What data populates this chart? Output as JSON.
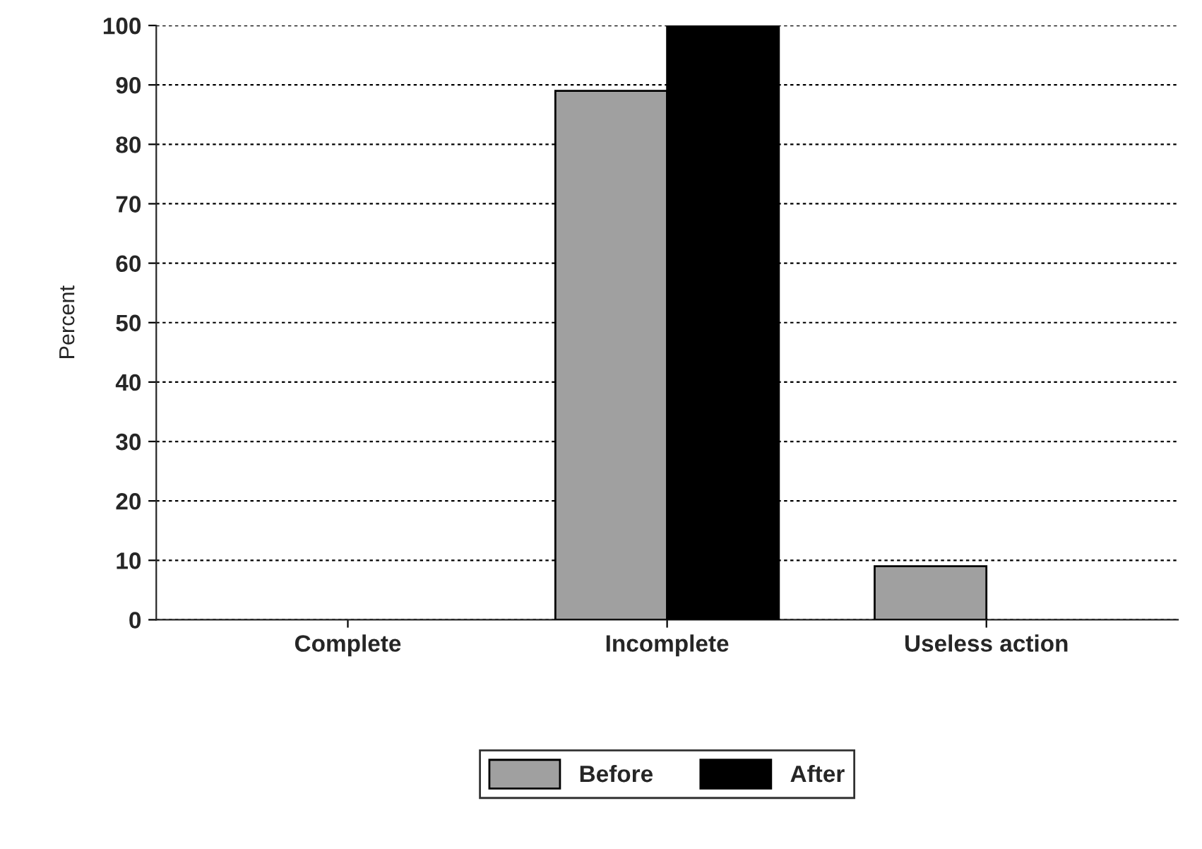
{
  "chart_data": {
    "type": "bar",
    "ylabel": "Percent",
    "categories": [
      "Complete",
      "Incomplete",
      "Useless action"
    ],
    "series": [
      {
        "name": "Before",
        "color": "#a0a0a0",
        "values": [
          0,
          89,
          9
        ]
      },
      {
        "name": "After",
        "color": "#000000",
        "values": [
          0,
          100,
          0
        ]
      }
    ],
    "ylim": [
      0,
      100
    ],
    "yticks": [
      0,
      10,
      20,
      30,
      40,
      50,
      60,
      70,
      80,
      90,
      100
    ],
    "grid": "y",
    "legend": "bottom"
  }
}
